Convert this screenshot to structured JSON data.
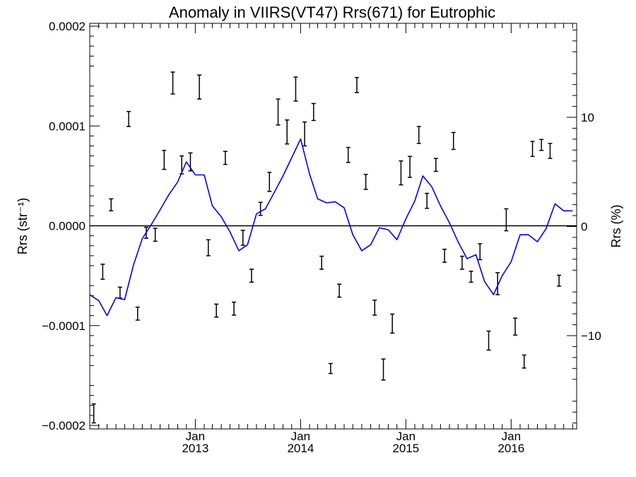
{
  "chart_data": {
    "type": "line",
    "title": "Anomaly in VIIRS(VT47) Rrs(671) for Eutrophic",
    "ylabel": "Rrs (str⁻¹)",
    "ylabel_right": "Rrs (%)",
    "xlim": [
      "2012-01-01",
      "2016-08-15"
    ],
    "ylim": [
      -0.0002,
      0.0002
    ],
    "y_ticks": [
      {
        "value": 0.0002,
        "label": "0.0002"
      },
      {
        "value": 0.0001,
        "label": "0.0001"
      },
      {
        "value": 0,
        "label": "0.0000"
      },
      {
        "value": -0.0001,
        "label": "−0.0001"
      },
      {
        "value": -0.0002,
        "label": "−0.0002"
      }
    ],
    "y2_ticks": [
      {
        "value": 10,
        "label": "10"
      },
      {
        "value": 0,
        "label": "0"
      },
      {
        "value": -10,
        "label": "−10"
      }
    ],
    "x_ticks": [
      {
        "date": "2013-01-01",
        "month": "Jan",
        "year": "2013"
      },
      {
        "date": "2014-01-01",
        "month": "Jan",
        "year": "2014"
      },
      {
        "date": "2015-01-01",
        "month": "Jan",
        "year": "2015"
      },
      {
        "date": "2016-01-01",
        "month": "Jan",
        "year": "2016"
      }
    ],
    "zero_line": true,
    "colors": {
      "line": "#0000ee",
      "error_bars": "#000000",
      "axes": "#000000"
    },
    "series": [
      {
        "style": "error_bars",
        "points": [
          {
            "x": "2012-01-15",
            "y": -0.000188,
            "err": 9.5e-06
          },
          {
            "x": "2012-02-15",
            "y": -4.6e-05,
            "err": 7.5e-06
          },
          {
            "x": "2012-03-15",
            "y": 2.1e-05,
            "err": 6e-06
          },
          {
            "x": "2012-04-15",
            "y": -6.7e-05,
            "err": 5.5e-06
          },
          {
            "x": "2012-05-15",
            "y": 0.000107,
            "err": 7.5e-06
          },
          {
            "x": "2012-06-15",
            "y": -8.8e-05,
            "err": 6.5e-06
          },
          {
            "x": "2012-07-15",
            "y": -7e-06,
            "err": 5.5e-06
          },
          {
            "x": "2012-08-15",
            "y": -9e-06,
            "err": 6.5e-06
          },
          {
            "x": "2012-09-15",
            "y": 6.6e-05,
            "err": 9.5e-06
          },
          {
            "x": "2012-10-15",
            "y": 0.000143,
            "err": 1.1e-05
          },
          {
            "x": "2012-11-15",
            "y": 6.1e-05,
            "err": 9e-06
          },
          {
            "x": "2012-12-15",
            "y": 6.4e-05,
            "err": 9e-06
          },
          {
            "x": "2013-01-15",
            "y": 0.000139,
            "err": 1.2e-05
          },
          {
            "x": "2013-02-15",
            "y": -2.2e-05,
            "err": 8e-06
          },
          {
            "x": "2013-03-15",
            "y": -8.5e-05,
            "err": 6.5e-06
          },
          {
            "x": "2013-04-15",
            "y": 6.8e-05,
            "err": 6.5e-06
          },
          {
            "x": "2013-05-15",
            "y": -8.3e-05,
            "err": 6.5e-06
          },
          {
            "x": "2013-06-15",
            "y": -1.2e-05,
            "err": 7.5e-06
          },
          {
            "x": "2013-07-15",
            "y": -5e-05,
            "err": 6.5e-06
          },
          {
            "x": "2013-08-15",
            "y": 1.7e-05,
            "err": 6.5e-06
          },
          {
            "x": "2013-09-15",
            "y": 4.4e-05,
            "err": 9.5e-06
          },
          {
            "x": "2013-10-15",
            "y": 0.000114,
            "err": 1.3e-05
          },
          {
            "x": "2013-11-15",
            "y": 9.4e-05,
            "err": 1.2e-05
          },
          {
            "x": "2013-12-15",
            "y": 0.000137,
            "err": 1.2e-05
          },
          {
            "x": "2014-01-15",
            "y": 9.2e-05,
            "err": 1.2e-05
          },
          {
            "x": "2014-02-15",
            "y": 0.000114,
            "err": 8.5e-06
          },
          {
            "x": "2014-03-15",
            "y": -3.7e-05,
            "err": 6.5e-06
          },
          {
            "x": "2014-04-15",
            "y": -0.000143,
            "err": 5e-06
          },
          {
            "x": "2014-05-15",
            "y": -6.5e-05,
            "err": 6.5e-06
          },
          {
            "x": "2014-06-15",
            "y": 7.1e-05,
            "err": 7.5e-06
          },
          {
            "x": "2014-07-15",
            "y": 0.000141,
            "err": 7.5e-06
          },
          {
            "x": "2014-08-15",
            "y": 4.4e-05,
            "err": 7.5e-06
          },
          {
            "x": "2014-09-15",
            "y": -8.2e-05,
            "err": 7.5e-06
          },
          {
            "x": "2014-10-15",
            "y": -0.000144,
            "err": 1.05e-05
          },
          {
            "x": "2014-11-15",
            "y": -9.8e-05,
            "err": 9.5e-06
          },
          {
            "x": "2014-12-15",
            "y": 5.3e-05,
            "err": 1.2e-05
          },
          {
            "x": "2015-01-15",
            "y": 5.9e-05,
            "err": 1.05e-05
          },
          {
            "x": "2015-02-15",
            "y": 9.1e-05,
            "err": 8.5e-06
          },
          {
            "x": "2015-03-15",
            "y": 2.5e-05,
            "err": 7.5e-06
          },
          {
            "x": "2015-04-15",
            "y": 6.1e-05,
            "err": 6.5e-06
          },
          {
            "x": "2015-05-15",
            "y": -3e-05,
            "err": 6.5e-06
          },
          {
            "x": "2015-06-15",
            "y": 8.5e-05,
            "err": 8.5e-06
          },
          {
            "x": "2015-07-15",
            "y": -3.7e-05,
            "err": 6.5e-06
          },
          {
            "x": "2015-08-15",
            "y": -5.1e-05,
            "err": 5.5e-06
          },
          {
            "x": "2015-09-15",
            "y": -2.6e-05,
            "err": 8e-06
          },
          {
            "x": "2015-10-15",
            "y": -0.000115,
            "err": 9.5e-06
          },
          {
            "x": "2015-11-15",
            "y": -5.8e-05,
            "err": 1.1e-05
          },
          {
            "x": "2015-12-15",
            "y": 6e-06,
            "err": 1.1e-05
          },
          {
            "x": "2016-01-15",
            "y": -0.000101,
            "err": 8.5e-06
          },
          {
            "x": "2016-02-15",
            "y": -0.000136,
            "err": 6.5e-06
          },
          {
            "x": "2016-03-15",
            "y": 7.7e-05,
            "err": 7.5e-06
          },
          {
            "x": "2016-04-15",
            "y": 8.1e-05,
            "err": 5.5e-06
          },
          {
            "x": "2016-05-15",
            "y": 7.5e-05,
            "err": 7.5e-06
          },
          {
            "x": "2016-06-15",
            "y": -5.5e-05,
            "err": 5.5e-06
          }
        ]
      },
      {
        "style": "line",
        "x": [
          "2012-01-01",
          "2012-02-01",
          "2012-03-01",
          "2012-04-01",
          "2012-05-01",
          "2012-06-01",
          "2012-07-01",
          "2012-08-01",
          "2012-09-01",
          "2012-10-01",
          "2012-11-01",
          "2012-12-01",
          "2013-01-01",
          "2013-02-01",
          "2013-03-01",
          "2013-04-01",
          "2013-05-01",
          "2013-06-01",
          "2013-07-01",
          "2013-08-01",
          "2013-09-01",
          "2013-10-01",
          "2013-11-01",
          "2013-12-01",
          "2014-01-01",
          "2014-02-01",
          "2014-03-01",
          "2014-04-01",
          "2014-05-01",
          "2014-06-01",
          "2014-07-01",
          "2014-08-01",
          "2014-09-01",
          "2014-10-01",
          "2014-11-01",
          "2014-12-01",
          "2015-01-01",
          "2015-02-01",
          "2015-03-01",
          "2015-04-01",
          "2015-05-01",
          "2015-06-01",
          "2015-07-01",
          "2015-08-01",
          "2015-09-01",
          "2015-10-01",
          "2015-11-01",
          "2015-12-01",
          "2016-01-01",
          "2016-02-01",
          "2016-03-01",
          "2016-04-01",
          "2016-05-01",
          "2016-06-01",
          "2016-07-01",
          "2016-08-01"
        ],
        "y": [
          -6.9e-05,
          -7.5e-05,
          -9e-05,
          -7.2e-05,
          -7.4e-05,
          -3.9e-05,
          -1.3e-05,
          1e-06,
          1.6e-05,
          3.1e-05,
          4.4e-05,
          6.4e-05,
          5.1e-05,
          5.1e-05,
          2e-05,
          9e-06,
          -6e-06,
          -2.5e-05,
          -1.9e-05,
          1.2e-05,
          1.7e-05,
          3.3e-05,
          5e-05,
          6.8e-05,
          8.7e-05,
          5.2e-05,
          2.7e-05,
          2.3e-05,
          2.4e-05,
          1.8e-05,
          -9e-06,
          -2.5e-05,
          -1.9e-05,
          -2e-06,
          -4e-06,
          -1.4e-05,
          7e-06,
          2.5e-05,
          5e-05,
          3.9e-05,
          2e-05,
          3e-06,
          -1.6e-05,
          -3.3e-05,
          -2.9e-05,
          -5.6e-05,
          -6.9e-05,
          -5e-05,
          -3.6e-05,
          -9e-06,
          -9e-06,
          -1.6e-05,
          -3e-06,
          2.2e-05,
          1.5e-05,
          1.5e-05
        ]
      }
    ]
  }
}
